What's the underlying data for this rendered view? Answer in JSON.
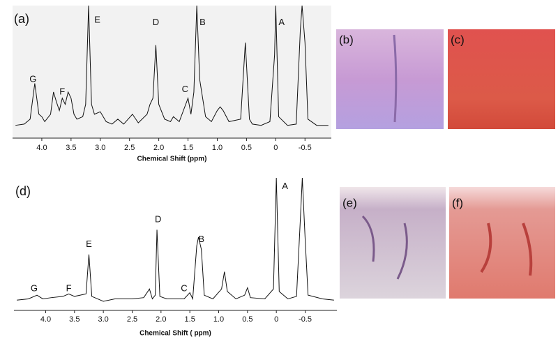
{
  "chart_data": [
    {
      "type": "line",
      "panel_label": "(a)",
      "x_label": "Chemical Shift (ppm)",
      "color": "#111111",
      "xlim": [
        4.5,
        -0.95
      ],
      "ylim": [
        0,
        100
      ],
      "xticks": [
        {
          "value": 4,
          "label": "4.0"
        },
        3.5,
        {
          "value": 3,
          "label": "3.0"
        },
        2.5,
        {
          "value": 2,
          "label": "2.0"
        },
        1.5,
        {
          "value": 1,
          "label": "1.0"
        },
        0.5,
        0,
        -0.5
      ],
      "x": [
        4.45,
        4.3,
        4.2,
        4.12,
        4.05,
        4.0,
        3.95,
        3.85,
        3.8,
        3.75,
        3.7,
        3.65,
        3.6,
        3.55,
        3.5,
        3.45,
        3.4,
        3.3,
        3.25,
        3.2,
        3.15,
        3.1,
        3.0,
        2.9,
        2.8,
        2.7,
        2.6,
        2.45,
        2.35,
        2.2,
        2.15,
        2.1,
        2.05,
        2.0,
        1.9,
        1.8,
        1.75,
        1.65,
        1.5,
        1.45,
        1.4,
        1.35,
        1.3,
        1.2,
        1.1,
        1.0,
        0.95,
        0.9,
        0.8,
        0.6,
        0.52,
        0.45,
        0.4,
        0.25,
        0.1,
        0.02,
        0.0,
        -0.05,
        -0.2,
        -0.35,
        -0.42,
        -0.45,
        -0.5,
        -0.55,
        -0.7,
        -0.9
      ],
      "series": [
        {
          "values": [
            3,
            4,
            8,
            37,
            12,
            10,
            6,
            12,
            30,
            22,
            15,
            25,
            20,
            30,
            25,
            12,
            8,
            10,
            20,
            100,
            20,
            12,
            14,
            6,
            4,
            8,
            4,
            12,
            5,
            12,
            20,
            25,
            68,
            20,
            8,
            6,
            10,
            6,
            25,
            12,
            30,
            100,
            40,
            10,
            6,
            15,
            18,
            15,
            6,
            8,
            70,
            8,
            4,
            3,
            6,
            60,
            100,
            10,
            3,
            4,
            80,
            100,
            70,
            8,
            3,
            3
          ]
        }
      ],
      "annotations": [
        {
          "text": "G",
          "x": 4.15,
          "y": 40
        },
        {
          "text": "F",
          "x": 3.65,
          "y": 30
        },
        {
          "text": "E",
          "x": 3.05,
          "y": 88
        },
        {
          "text": "D",
          "x": 2.05,
          "y": 86
        },
        {
          "text": "C",
          "x": 1.55,
          "y": 32
        },
        {
          "text": "B",
          "x": 1.25,
          "y": 86
        },
        {
          "text": "A",
          "x": -0.1,
          "y": 86
        }
      ]
    },
    {
      "type": "line",
      "panel_label": "(d)",
      "x_label": "Chemical Shift ( ppm)",
      "color": "#111111",
      "xlim": [
        4.55,
        -1.05
      ],
      "ylim": [
        0,
        100
      ],
      "xticks": [
        {
          "value": 4,
          "label": "4.0"
        },
        3.5,
        {
          "value": 3,
          "label": "3.0"
        },
        2.5,
        {
          "value": 2,
          "label": "2.0"
        },
        1.5,
        {
          "value": 1,
          "label": "1.0"
        },
        0.5,
        0,
        -0.5
      ],
      "x": [
        4.5,
        4.3,
        4.15,
        4.05,
        3.9,
        3.7,
        3.6,
        3.5,
        3.4,
        3.3,
        3.25,
        3.2,
        3.1,
        3.0,
        2.8,
        2.5,
        2.3,
        2.2,
        2.15,
        2.1,
        2.07,
        2.02,
        1.9,
        1.6,
        1.5,
        1.45,
        1.38,
        1.35,
        1.3,
        1.25,
        1.1,
        0.95,
        0.9,
        0.85,
        0.7,
        0.55,
        0.5,
        0.45,
        0.2,
        0.05,
        0.0,
        -0.05,
        -0.2,
        -0.35,
        -0.42,
        -0.45,
        -0.5,
        -0.55,
        -0.8,
        -1.0
      ],
      "series": [
        {
          "values": [
            1,
            2,
            5,
            2,
            3,
            4,
            6,
            4,
            5,
            6,
            38,
            4,
            2,
            0,
            2,
            2,
            3,
            10,
            2,
            5,
            58,
            4,
            2,
            2,
            7,
            2,
            45,
            52,
            42,
            5,
            2,
            10,
            24,
            8,
            2,
            5,
            11,
            3,
            2,
            10,
            100,
            8,
            2,
            4,
            70,
            100,
            50,
            5,
            2,
            1
          ]
        }
      ],
      "annotations": [
        {
          "text": "G",
          "x": 4.2,
          "y": 10
        },
        {
          "text": "F",
          "x": 3.6,
          "y": 10
        },
        {
          "text": "E",
          "x": 3.25,
          "y": 46
        },
        {
          "text": "D",
          "x": 2.05,
          "y": 66
        },
        {
          "text": "C",
          "x": 1.6,
          "y": 10
        },
        {
          "text": "B",
          "x": 1.3,
          "y": 50
        },
        {
          "text": "A",
          "x": -0.15,
          "y": 93
        }
      ]
    }
  ],
  "images": [
    {
      "label": "(b)"
    },
    {
      "label": "(c)"
    },
    {
      "label": "(e)"
    },
    {
      "label": "(f)"
    }
  ]
}
